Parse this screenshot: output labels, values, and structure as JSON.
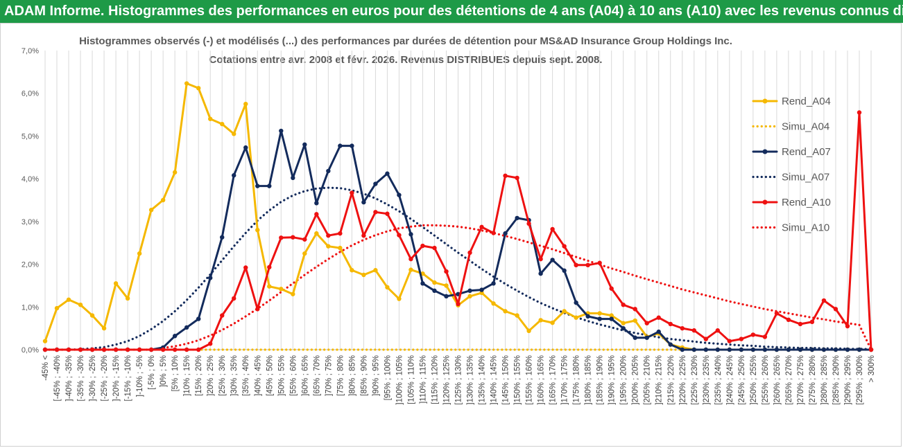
{
  "banner": {
    "title": "ADAM Informe. Histogrammes des performances en euros pour des détentions de 4 ans (A04) à 10 ans (A10) avec les revenus connus distribués"
  },
  "colors": {
    "banner_bg": "#1e9a47",
    "a04": "#f5b800",
    "a07": "#132b5c",
    "a10": "#ee1111"
  },
  "chart_data": {
    "type": "line",
    "title_line1": "Histogrammes observés (-) et modélisés (...) des performances par durées de détention pour MS&AD Insurance Group Holdings Inc.",
    "title_line2": "Cotations entre avr. 2008 et févr. 2026. Revenus DISTRIBUES depuis sept. 2008.",
    "ylim": [
      0,
      7
    ],
    "yticks": [
      "0,0%",
      "1,0%",
      "2,0%",
      "3,0%",
      "4,0%",
      "5,0%",
      "6,0%",
      "7,0%"
    ],
    "categories": [
      "-45% <",
      "[-45% ; -40%",
      "]-40% ; -35%",
      "[-35% ; -30%",
      "]-30% ; -25%",
      "[-25% ; -20%",
      "]-20% ; -15%",
      "[-15% ; -10%",
      "]-10% ; -5%",
      "[-5% ; 0%",
      "]0% ; 5%",
      "[5% ; 10%",
      "]10% ; 15%",
      "[15% ; 20%",
      "]20% ; 25%",
      "[25% ; 30%",
      "]30% ; 35%",
      "[35% ; 40%",
      "]40% ; 45%",
      "[45% ; 50%",
      "]50% ; 55%",
      "[55% ; 60%",
      "]60% ; 65%",
      "[65% ; 70%",
      "]70% ; 75%",
      "[75% ; 80%",
      "]80% ; 85%",
      "[85% ; 90%",
      "]90% ; 95%",
      "[95% ; 100%",
      "]100% ; 105%",
      "[105% ; 110%",
      "]110% ; 115%",
      "[115% ; 120%",
      "]120% ; 125%",
      "[125% ; 130%",
      "]130% ; 135%",
      "[135% ; 140%",
      "]140% ; 145%",
      "[145% ; 150%",
      "]150% ; 155%",
      "[155% ; 160%",
      "]160% ; 165%",
      "[165% ; 170%",
      "]170% ; 175%",
      "[175% ; 180%",
      "]180% ; 185%",
      "[185% ; 190%",
      "]190% ; 195%",
      "[195% ; 200%",
      "]200% ; 205%",
      "[205% ; 210%",
      "]210% ; 215%",
      "[215% ; 220%",
      "]220% ; 225%",
      "[225% ; 230%",
      "]230% ; 235%",
      "[235% ; 240%",
      "]240% ; 245%",
      "[245% ; 250%",
      "]250% ; 255%",
      "[255% ; 260%",
      "]260% ; 265%",
      "[265% ; 270%",
      "]270% ; 275%",
      "[275% ; 280%",
      "]280% ; 285%",
      "[285% ; 290%",
      "]290% ; 295%",
      "[295% ; 300%",
      "> 300%"
    ],
    "series": [
      {
        "name": "Rend_A04",
        "style": "solid",
        "color": "#f5b800",
        "values": [
          0.2,
          0.97,
          1.17,
          1.05,
          0.8,
          0.5,
          1.55,
          1.2,
          2.25,
          3.27,
          3.5,
          4.15,
          6.23,
          6.12,
          5.4,
          5.28,
          5.05,
          5.75,
          2.8,
          1.48,
          1.42,
          1.3,
          2.25,
          2.72,
          2.42,
          2.38,
          1.86,
          1.75,
          1.86,
          1.46,
          1.19,
          1.87,
          1.78,
          1.57,
          1.5,
          1.04,
          1.25,
          1.33,
          1.08,
          0.9,
          0.8,
          0.44,
          0.69,
          0.63,
          0.9,
          0.75,
          0.85,
          0.85,
          0.8,
          0.62,
          0.68,
          0.3,
          0.38,
          0.12,
          0.05,
          0.0,
          0.0,
          0.0,
          0.0,
          0.0,
          0.0,
          0.0,
          0.0,
          0.0,
          0.0,
          0.0,
          0.0,
          0.0,
          0.0,
          0.0,
          0.0
        ]
      },
      {
        "name": "Simu_A04",
        "style": "dotted",
        "color": "#f5b800",
        "values": [
          0,
          0,
          0,
          0,
          0,
          0,
          0,
          0,
          0,
          0,
          0,
          0,
          0,
          0,
          0,
          0,
          0,
          0,
          0,
          0,
          0,
          0,
          0,
          0,
          0,
          0,
          0,
          0,
          0,
          0,
          0,
          0,
          0,
          0,
          0,
          0,
          0,
          0,
          0,
          0,
          0,
          0,
          0,
          0,
          0,
          0,
          0,
          0,
          0,
          0,
          0,
          0,
          0,
          0,
          0,
          0,
          0,
          0,
          0,
          0,
          0,
          0,
          0,
          0,
          0,
          0,
          0,
          0,
          0,
          0,
          0
        ]
      },
      {
        "name": "Rend_A07",
        "style": "solid",
        "color": "#132b5c",
        "values": [
          0,
          0,
          0,
          0,
          0,
          0,
          0,
          0,
          0,
          0,
          0.05,
          0.32,
          0.52,
          0.72,
          1.68,
          2.63,
          4.08,
          4.73,
          3.83,
          3.83,
          5.12,
          4.02,
          4.8,
          3.43,
          4.18,
          4.77,
          4.77,
          3.45,
          3.88,
          4.12,
          3.62,
          2.7,
          1.55,
          1.38,
          1.25,
          1.3,
          1.38,
          1.4,
          1.55,
          2.72,
          3.08,
          3.03,
          1.78,
          2.1,
          1.85,
          1.1,
          0.78,
          0.72,
          0.72,
          0.5,
          0.28,
          0.28,
          0.42,
          0.12,
          0.0,
          0.0,
          0.0,
          0.0,
          0.0,
          0.0,
          0.0,
          0.0,
          0.0,
          0.0,
          0.0,
          0.0,
          0.0,
          0.0,
          0.0,
          0.0,
          0.0
        ]
      },
      {
        "name": "Simu_A07",
        "style": "dotted",
        "color": "#132b5c",
        "values": [
          0,
          0,
          0,
          0.01,
          0.03,
          0.06,
          0.12,
          0.2,
          0.32,
          0.48,
          0.67,
          0.9,
          1.16,
          1.45,
          1.76,
          2.09,
          2.42,
          2.73,
          3.02,
          3.26,
          3.46,
          3.61,
          3.71,
          3.77,
          3.79,
          3.78,
          3.73,
          3.65,
          3.54,
          3.4,
          3.24,
          3.06,
          2.87,
          2.67,
          2.47,
          2.27,
          2.08,
          1.89,
          1.71,
          1.54,
          1.38,
          1.23,
          1.09,
          0.97,
          0.86,
          0.76,
          0.67,
          0.59,
          0.52,
          0.45,
          0.39,
          0.34,
          0.29,
          0.25,
          0.22,
          0.19,
          0.16,
          0.14,
          0.12,
          0.1,
          0.09,
          0.07,
          0.06,
          0.05,
          0.04,
          0.04,
          0.03,
          0.03,
          0.02,
          0.02,
          0.01
        ]
      },
      {
        "name": "Rend_A10",
        "style": "solid",
        "color": "#ee1111",
        "values": [
          0,
          0,
          0,
          0,
          0,
          0,
          0,
          0,
          0,
          0,
          0,
          0,
          0,
          0,
          0.14,
          0.8,
          1.2,
          1.92,
          0.95,
          1.93,
          2.62,
          2.63,
          2.58,
          3.17,
          2.67,
          2.72,
          3.67,
          2.67,
          3.22,
          3.18,
          2.68,
          2.12,
          2.43,
          2.38,
          1.83,
          1.07,
          2.27,
          2.87,
          2.73,
          4.07,
          4.02,
          2.95,
          2.12,
          2.82,
          2.42,
          1.98,
          1.98,
          2.03,
          1.43,
          1.05,
          0.95,
          0.62,
          0.75,
          0.6,
          0.5,
          0.45,
          0.25,
          0.45,
          0.2,
          0.25,
          0.35,
          0.3,
          0.85,
          0.7,
          0.6,
          0.65,
          1.15,
          0.95,
          0.55,
          5.55,
          0.0
        ]
      },
      {
        "name": "Simu_A10",
        "style": "dotted",
        "color": "#ee1111",
        "values": [
          0,
          0,
          0,
          0,
          0,
          0,
          0,
          0,
          0,
          0,
          0.04,
          0.08,
          0.14,
          0.22,
          0.33,
          0.46,
          0.61,
          0.78,
          0.96,
          1.15,
          1.35,
          1.55,
          1.75,
          1.94,
          2.12,
          2.29,
          2.44,
          2.57,
          2.68,
          2.77,
          2.84,
          2.88,
          2.91,
          2.91,
          2.9,
          2.88,
          2.84,
          2.79,
          2.73,
          2.66,
          2.59,
          2.51,
          2.43,
          2.35,
          2.26,
          2.17,
          2.08,
          1.99,
          1.9,
          1.82,
          1.73,
          1.65,
          1.57,
          1.49,
          1.41,
          1.34,
          1.27,
          1.2,
          1.13,
          1.07,
          1.01,
          0.95,
          0.9,
          0.85,
          0.8,
          0.75,
          0.71,
          0.66,
          0.62,
          0.58,
          0.0
        ]
      }
    ],
    "legend": [
      "Rend_A04",
      "Simu_A04",
      "Rend_A07",
      "Simu_A07",
      "Rend_A10",
      "Simu_A10"
    ],
    "legend_position": "right",
    "grid": "vertical"
  }
}
